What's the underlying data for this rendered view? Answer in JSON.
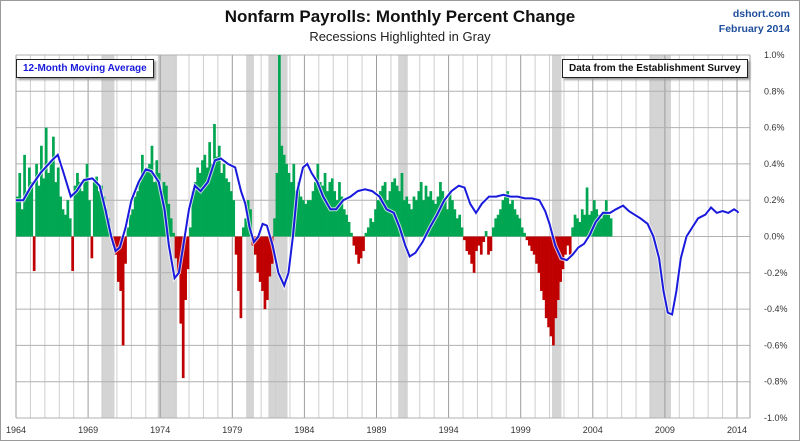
{
  "header": {
    "title": "Nonfarm Payrolls:  Monthly Percent Change",
    "subtitle": "Recessions  Highlighted in Gray",
    "source_line1": "dshort.com",
    "source_line2": "February 2014"
  },
  "legend": {
    "moving_average_label": "12-Month Moving Average",
    "data_note": "Data from the Establishment Survey"
  },
  "colors": {
    "positive_bar": "#00a651",
    "negative_bar": "#c00000",
    "moving_average": "#1a1adc",
    "recession_shade": "#d4d4d4",
    "grid": "#a8a8a8"
  },
  "chart_data": {
    "type": "bar",
    "title": "Nonfarm Payrolls:  Monthly Percent Change",
    "subtitle": "Recessions  Highlighted in Gray",
    "xlabel": "",
    "ylabel": "",
    "xlim": [
      1964,
      2014.3
    ],
    "ylim": [
      -1.0,
      1.0
    ],
    "y_ticks": [
      "1.0%",
      "0.8%",
      "0.6%",
      "0.4%",
      "0.2%",
      "0.0%",
      "-0.2%",
      "-0.4%",
      "-0.6%",
      "-0.8%",
      "-1.0%"
    ],
    "y_tick_values": [
      1.0,
      0.8,
      0.6,
      0.4,
      0.2,
      0.0,
      -0.2,
      -0.4,
      -0.6,
      -0.8,
      -1.0
    ],
    "x_ticks": [
      "1964",
      "1969",
      "1974",
      "1979",
      "1984",
      "1989",
      "1994",
      "1999",
      "2004",
      "2009",
      "2014"
    ],
    "x_tick_values": [
      1964,
      1969,
      1974,
      1979,
      1984,
      1989,
      1994,
      1999,
      2004,
      2009,
      2014
    ],
    "grid": true,
    "y_axis_side": "right",
    "recessions": [
      [
        1969.92,
        1970.83
      ],
      [
        1973.83,
        1975.17
      ],
      [
        1980.0,
        1980.5
      ],
      [
        1981.5,
        1982.83
      ],
      [
        1990.5,
        1991.17
      ],
      [
        2001.17,
        2001.83
      ],
      [
        2007.92,
        2009.42
      ]
    ],
    "series": [
      {
        "name": "Monthly Percent Change",
        "kind": "bar",
        "x_start": 1964.0,
        "x_step": 0.1667,
        "values": [
          0.22,
          0.35,
          0.15,
          0.45,
          0.25,
          0.38,
          0.3,
          -0.19,
          0.4,
          0.28,
          0.5,
          0.32,
          0.6,
          0.35,
          0.42,
          0.55,
          0.3,
          0.38,
          0.22,
          0.15,
          0.12,
          0.2,
          0.1,
          -0.19,
          0.28,
          0.35,
          0.3,
          0.25,
          0.32,
          0.4,
          0.2,
          -0.12,
          0.3,
          0.33,
          0.25,
          0.28,
          0.22,
          0.15,
          0.1,
          0.02,
          -0.05,
          -0.1,
          -0.25,
          -0.3,
          -0.6,
          -0.15,
          0.05,
          0.12,
          0.15,
          0.22,
          0.25,
          0.3,
          0.45,
          0.35,
          0.38,
          0.4,
          0.5,
          0.3,
          0.42,
          0.35,
          0.25,
          0.3,
          0.28,
          0.18,
          0.1,
          0.02,
          -0.12,
          -0.2,
          -0.48,
          -0.78,
          -0.35,
          -0.18,
          0.05,
          0.25,
          0.3,
          0.38,
          0.35,
          0.42,
          0.45,
          0.38,
          0.52,
          0.4,
          0.62,
          0.44,
          0.5,
          0.35,
          0.4,
          0.32,
          0.3,
          0.25,
          0.2,
          -0.1,
          -0.3,
          -0.45,
          0.05,
          0.1,
          0.2,
          0.15,
          -0.05,
          -0.1,
          -0.2,
          -0.25,
          -0.3,
          -0.4,
          -0.35,
          -0.22,
          -0.15,
          0.1,
          0.35,
          1.0,
          0.5,
          0.45,
          0.4,
          0.35,
          0.3,
          0.4,
          0.25,
          0.3,
          0.22,
          0.2,
          0.18,
          0.2,
          0.2,
          0.25,
          0.3,
          0.4,
          0.3,
          0.28,
          0.35,
          0.25,
          0.3,
          0.32,
          0.25,
          0.2,
          0.3,
          0.22,
          0.15,
          0.12,
          0.08,
          0.02,
          -0.05,
          -0.1,
          -0.15,
          -0.12,
          -0.08,
          0.02,
          0.05,
          0.1,
          0.08,
          0.15,
          0.2,
          0.25,
          0.28,
          0.3,
          0.2,
          0.25,
          0.3,
          0.32,
          0.28,
          0.25,
          0.35,
          0.2,
          0.22,
          0.18,
          0.15,
          0.22,
          0.2,
          0.25,
          0.3,
          0.2,
          0.28,
          0.22,
          0.25,
          0.2,
          0.18,
          0.22,
          0.3,
          0.25,
          0.2,
          0.15,
          0.25,
          0.2,
          0.15,
          0.1,
          0.12,
          0.05,
          -0.02,
          -0.08,
          -0.1,
          -0.15,
          -0.2,
          -0.08,
          -0.05,
          -0.1,
          -0.03,
          0.03,
          -0.1,
          -0.08,
          0.05,
          0.1,
          0.12,
          0.15,
          0.2,
          0.22,
          0.25,
          0.18,
          0.2,
          0.15,
          0.12,
          0.1,
          0.05,
          0.02,
          -0.02,
          -0.05,
          -0.08,
          -0.1,
          -0.15,
          -0.2,
          -0.3,
          -0.35,
          -0.45,
          -0.5,
          -0.55,
          -0.6,
          -0.45,
          -0.35,
          -0.25,
          -0.18,
          -0.1,
          -0.05,
          -0.1,
          0.05,
          0.12,
          0.1,
          0.08,
          0.15,
          0.12,
          0.27,
          0.12,
          0.14,
          0.2,
          0.15,
          0.12,
          0.1,
          0.14,
          0.2,
          0.12,
          0.1
        ]
      },
      {
        "name": "12-Month Moving Average",
        "kind": "line",
        "points": [
          [
            1964.0,
            0.2
          ],
          [
            1964.5,
            0.2
          ],
          [
            1965.0,
            0.27
          ],
          [
            1965.7,
            0.35
          ],
          [
            1966.5,
            0.42
          ],
          [
            1966.9,
            0.45
          ],
          [
            1967.3,
            0.35
          ],
          [
            1967.8,
            0.22
          ],
          [
            1968.2,
            0.25
          ],
          [
            1968.7,
            0.31
          ],
          [
            1969.3,
            0.32
          ],
          [
            1969.8,
            0.28
          ],
          [
            1970.2,
            0.15
          ],
          [
            1970.6,
            0.0
          ],
          [
            1970.9,
            -0.08
          ],
          [
            1971.2,
            -0.06
          ],
          [
            1971.6,
            0.05
          ],
          [
            1972.0,
            0.2
          ],
          [
            1972.5,
            0.3
          ],
          [
            1973.0,
            0.37
          ],
          [
            1973.4,
            0.36
          ],
          [
            1973.9,
            0.3
          ],
          [
            1974.3,
            0.15
          ],
          [
            1974.6,
            -0.05
          ],
          [
            1975.0,
            -0.23
          ],
          [
            1975.3,
            -0.2
          ],
          [
            1975.6,
            -0.05
          ],
          [
            1976.0,
            0.15
          ],
          [
            1976.4,
            0.28
          ],
          [
            1976.8,
            0.25
          ],
          [
            1977.3,
            0.3
          ],
          [
            1977.8,
            0.42
          ],
          [
            1978.2,
            0.43
          ],
          [
            1978.7,
            0.4
          ],
          [
            1979.2,
            0.38
          ],
          [
            1979.6,
            0.25
          ],
          [
            1979.9,
            0.18
          ],
          [
            1980.2,
            0.05
          ],
          [
            1980.5,
            -0.03
          ],
          [
            1980.8,
            0.0
          ],
          [
            1981.1,
            0.07
          ],
          [
            1981.4,
            0.06
          ],
          [
            1981.8,
            -0.05
          ],
          [
            1982.2,
            -0.2
          ],
          [
            1982.6,
            -0.27
          ],
          [
            1982.9,
            -0.2
          ],
          [
            1983.2,
            0.0
          ],
          [
            1983.5,
            0.25
          ],
          [
            1983.9,
            0.38
          ],
          [
            1984.2,
            0.4
          ],
          [
            1984.5,
            0.35
          ],
          [
            1984.9,
            0.3
          ],
          [
            1985.3,
            0.22
          ],
          [
            1985.8,
            0.15
          ],
          [
            1986.2,
            0.15
          ],
          [
            1986.7,
            0.2
          ],
          [
            1987.2,
            0.22
          ],
          [
            1987.7,
            0.25
          ],
          [
            1988.2,
            0.26
          ],
          [
            1988.7,
            0.25
          ],
          [
            1989.2,
            0.22
          ],
          [
            1989.7,
            0.15
          ],
          [
            1990.2,
            0.13
          ],
          [
            1990.6,
            0.05
          ],
          [
            1991.0,
            -0.05
          ],
          [
            1991.3,
            -0.11
          ],
          [
            1991.7,
            -0.09
          ],
          [
            1992.2,
            -0.03
          ],
          [
            1992.7,
            0.05
          ],
          [
            1993.2,
            0.12
          ],
          [
            1993.7,
            0.2
          ],
          [
            1994.2,
            0.25
          ],
          [
            1994.7,
            0.28
          ],
          [
            1995.1,
            0.27
          ],
          [
            1995.5,
            0.18
          ],
          [
            1995.9,
            0.13
          ],
          [
            1996.3,
            0.18
          ],
          [
            1996.8,
            0.22
          ],
          [
            1997.3,
            0.22
          ],
          [
            1997.8,
            0.23
          ],
          [
            1998.3,
            0.22
          ],
          [
            1998.8,
            0.22
          ],
          [
            1999.3,
            0.21
          ],
          [
            1999.8,
            0.21
          ],
          [
            2000.3,
            0.2
          ],
          [
            2000.7,
            0.14
          ],
          [
            2001.0,
            0.07
          ],
          [
            2001.4,
            -0.05
          ],
          [
            2001.8,
            -0.12
          ],
          [
            2002.2,
            -0.13
          ],
          [
            2002.6,
            -0.1
          ],
          [
            2003.0,
            -0.06
          ],
          [
            2003.4,
            -0.04
          ],
          [
            2003.8,
            0.01
          ],
          [
            2004.2,
            0.08
          ],
          [
            2004.7,
            0.13
          ],
          [
            2005.2,
            0.13
          ],
          [
            2005.6,
            0.15
          ],
          [
            2006.1,
            0.17
          ],
          [
            2006.5,
            0.14
          ],
          [
            2006.9,
            0.12
          ],
          [
            2007.3,
            0.1
          ],
          [
            2007.8,
            0.07
          ],
          [
            2008.2,
            0.0
          ],
          [
            2008.6,
            -0.12
          ],
          [
            2008.9,
            -0.3
          ],
          [
            2009.2,
            -0.42
          ],
          [
            2009.5,
            -0.43
          ],
          [
            2009.8,
            -0.3
          ],
          [
            2010.1,
            -0.12
          ],
          [
            2010.5,
            0.0
          ],
          [
            2010.9,
            0.05
          ],
          [
            2011.3,
            0.1
          ],
          [
            2011.8,
            0.12
          ],
          [
            2012.2,
            0.16
          ],
          [
            2012.6,
            0.13
          ],
          [
            2013.0,
            0.14
          ],
          [
            2013.4,
            0.13
          ],
          [
            2013.8,
            0.15
          ],
          [
            2014.0,
            0.14
          ],
          [
            2014.1,
            0.13
          ]
        ]
      }
    ]
  }
}
